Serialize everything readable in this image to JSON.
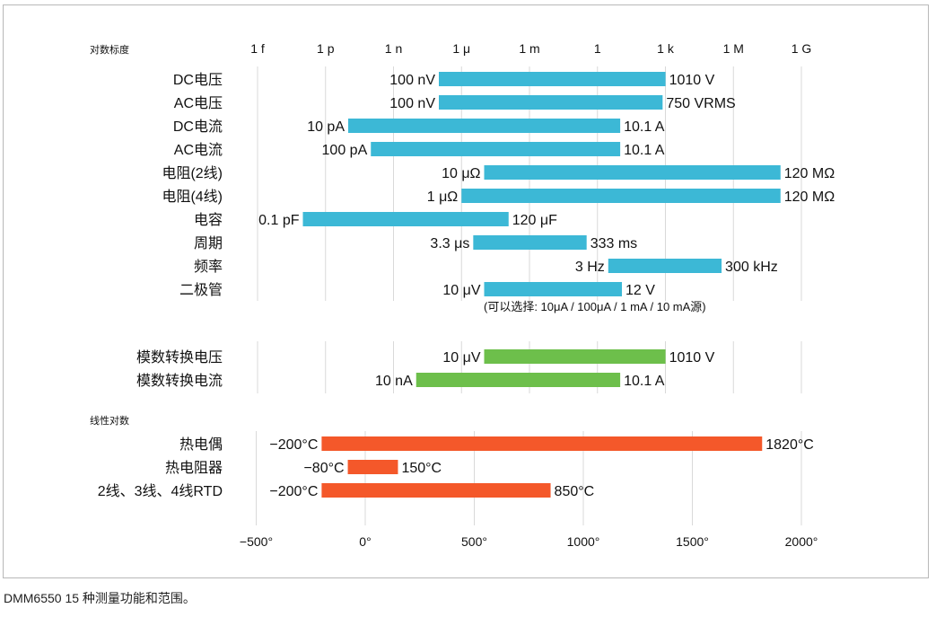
{
  "caption": "DMM6550 15 种测量功能和范围。",
  "colors": {
    "log": "#3cb8d6",
    "adc": "#6dbf4b",
    "linear": "#f4582a",
    "grid": "#d9d9d9"
  },
  "chart_data": [
    {
      "type": "range-bar",
      "title": "对数标度",
      "scale": "log",
      "tick_labels": [
        "1 f",
        "1 p",
        "1 n",
        "1 μ",
        "1 m",
        "1",
        "1 k",
        "1 M",
        "1 G"
      ],
      "tick_values": [
        1e-15,
        1e-12,
        1e-09,
        1e-06,
        0.001,
        1,
        1000.0,
        1000000.0,
        1000000000.0
      ],
      "color": "#3cb8d6",
      "rows": [
        {
          "label": "DC电压",
          "min": 1e-07,
          "max": 1010,
          "min_label": "100 nV",
          "max_label": "1010 V"
        },
        {
          "label": "AC电压",
          "min": 1e-07,
          "max": 750,
          "min_label": "100 nV",
          "max_label": "750 VRMS"
        },
        {
          "label": "DC电流",
          "min": 1e-11,
          "max": 10.1,
          "min_label": "10 pA",
          "max_label": "10.1 A"
        },
        {
          "label": "AC电流",
          "min": 1e-10,
          "max": 10.1,
          "min_label": "100 pA",
          "max_label": "10.1 A"
        },
        {
          "label": "电阻(2线)",
          "min": 1e-05,
          "max": 120000000.0,
          "min_label": "10 μΩ",
          "max_label": "120 MΩ"
        },
        {
          "label": "电阻(4线)",
          "min": 1e-06,
          "max": 120000000.0,
          "min_label": "1 μΩ",
          "max_label": "120 MΩ"
        },
        {
          "label": "电容",
          "min": 1e-13,
          "max": 0.00012,
          "min_label": "0.1 pF",
          "max_label": "120 μF"
        },
        {
          "label": "周期",
          "min": 3.3e-06,
          "max": 0.333,
          "min_label": "3.3 μs",
          "max_label": "333 ms"
        },
        {
          "label": "频率",
          "min": 3,
          "max": 300000.0,
          "min_label": "3 Hz",
          "max_label": "300 kHz"
        },
        {
          "label": "二极管",
          "min": 1e-05,
          "max": 12,
          "min_label": "10 μV",
          "max_label": "12 V"
        }
      ],
      "annotation": "(可以选择: 10μA / 100μA / 1 mA / 10 mA源)"
    },
    {
      "type": "range-bar",
      "scale": "log",
      "color": "#6dbf4b",
      "rows": [
        {
          "label": "模数转换电压",
          "min": 1e-05,
          "max": 1010,
          "min_label": "10 μV",
          "max_label": "1010 V"
        },
        {
          "label": "模数转换电流",
          "min": 1e-08,
          "max": 10.1,
          "min_label": "10 nA",
          "max_label": "10.1 A"
        }
      ]
    },
    {
      "type": "range-bar",
      "title": "线性对数",
      "scale": "linear",
      "xlim": [
        -500,
        2000
      ],
      "tick_labels": [
        "−500°",
        "0°",
        "500°",
        "1000°",
        "1500°",
        "2000°"
      ],
      "tick_values": [
        -500,
        0,
        500,
        1000,
        1500,
        2000
      ],
      "color": "#f4582a",
      "rows": [
        {
          "label": "热电偶",
          "min": -200,
          "max": 1820,
          "min_label": "−200°C",
          "max_label": "1820°C"
        },
        {
          "label": "热电阻器",
          "min": -80,
          "max": 150,
          "min_label": "−80°C",
          "max_label": "150°C"
        },
        {
          "label": "2线、3线、4线RTD",
          "min": -200,
          "max": 850,
          "min_label": "−200°C",
          "max_label": "850°C"
        }
      ]
    }
  ]
}
